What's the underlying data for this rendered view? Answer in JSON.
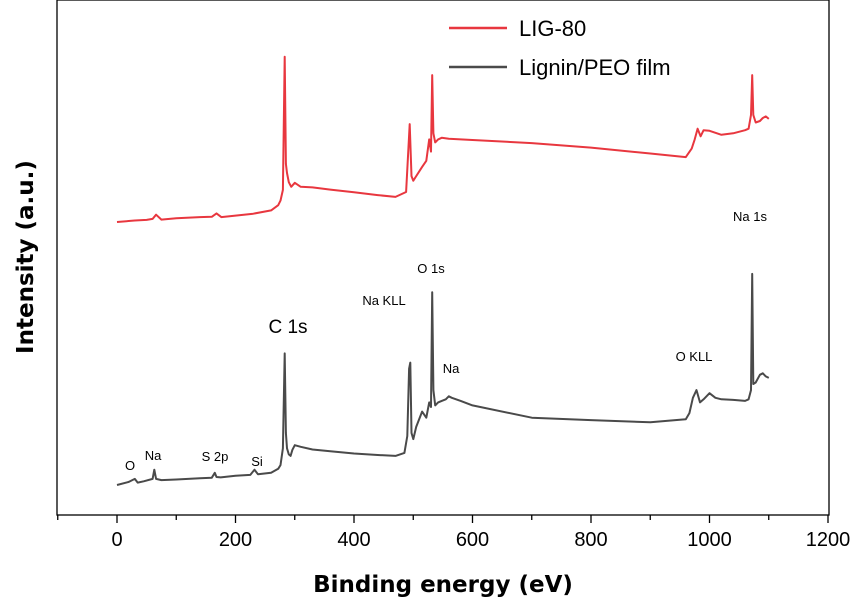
{
  "chart_data": {
    "type": "line",
    "title": "",
    "xlabel": "Binding energy (eV)",
    "ylabel": "Intensity (a.u.)",
    "xlim": [
      -100,
      1200
    ],
    "xticks": [
      0,
      200,
      400,
      600,
      800,
      1000,
      1200
    ],
    "yticks_shown": false,
    "grid": false,
    "legend_position": "top-right",
    "colors": {
      "LIG-80": "#e8373f",
      "Lignin/PEO film": "#4a4a4a",
      "axis": "#000000"
    },
    "series": [
      {
        "name": "LIG-80",
        "x": [
          0,
          30,
          50,
          60,
          66,
          75,
          100,
          140,
          160,
          168,
          176,
          200,
          230,
          260,
          272,
          276,
          280,
          283,
          285,
          287,
          290,
          294,
          300,
          310,
          330,
          360,
          400,
          440,
          470,
          488,
          494,
          497,
          500,
          505,
          515,
          522,
          527,
          530,
          532,
          534,
          537,
          542,
          548,
          560,
          600,
          700,
          800,
          900,
          960,
          970,
          975,
          980,
          985,
          990,
          1000,
          1020,
          1040,
          1060,
          1066,
          1070,
          1072,
          1074,
          1078,
          1085,
          1090,
          1095,
          1100
        ],
        "y": [
          1.0,
          1.5,
          1.7,
          2.0,
          3.4,
          1.8,
          2.2,
          2.6,
          2.7,
          3.8,
          2.6,
          3.1,
          3.7,
          4.8,
          6.5,
          8.0,
          11.5,
          55.0,
          20.0,
          17.0,
          14.0,
          12.5,
          13.8,
          12.5,
          12.3,
          11.6,
          10.7,
          9.8,
          9.2,
          10.8,
          33.0,
          16.0,
          14.5,
          16.0,
          19.0,
          21.0,
          28.0,
          24.0,
          49.0,
          30.0,
          27.0,
          28.0,
          28.5,
          28.2,
          27.8,
          26.8,
          25.3,
          23.4,
          22.2,
          25.0,
          28.0,
          31.5,
          29.0,
          31.0,
          30.8,
          29.5,
          30.0,
          31.0,
          31.5,
          36.0,
          49.0,
          36.0,
          33.5,
          34.0,
          35.0,
          35.5,
          34.7
        ]
      },
      {
        "name": "Lignin/PEO film",
        "x": [
          0,
          20,
          30,
          35,
          45,
          60,
          63,
          66,
          75,
          100,
          140,
          160,
          165,
          168,
          175,
          200,
          225,
          232,
          238,
          260,
          272,
          276,
          280,
          283,
          285,
          287,
          290,
          293,
          296,
          300,
          310,
          330,
          360,
          400,
          440,
          470,
          485,
          490,
          493,
          495,
          497,
          500,
          505,
          515,
          522,
          527,
          530,
          532,
          534,
          537,
          542,
          548,
          555,
          560,
          565,
          580,
          600,
          700,
          800,
          900,
          960,
          966,
          972,
          978,
          984,
          990,
          995,
          1000,
          1010,
          1020,
          1040,
          1060,
          1066,
          1070,
          1072,
          1074,
          1078,
          1085,
          1090,
          1095,
          1100
        ],
        "y": [
          1.0,
          2.0,
          3.0,
          1.8,
          2.2,
          3.0,
          6.0,
          3.0,
          2.6,
          2.8,
          3.2,
          3.4,
          5.0,
          3.6,
          3.5,
          4.0,
          4.3,
          6.0,
          4.5,
          5.0,
          6.3,
          7.5,
          13.0,
          44.0,
          18.0,
          13.0,
          11.0,
          10.5,
          12.5,
          14.0,
          13.5,
          12.6,
          12.0,
          11.3,
          10.8,
          10.5,
          11.5,
          17.0,
          39.0,
          41.0,
          18.0,
          16.0,
          20.0,
          25.0,
          23.0,
          28.0,
          26.5,
          64.0,
          32.0,
          27.0,
          28.0,
          28.5,
          29.0,
          30.0,
          29.5,
          28.5,
          27.0,
          23.0,
          22.2,
          21.5,
          22.5,
          24.5,
          29.5,
          32.0,
          28.0,
          29.0,
          30.0,
          31.0,
          29.5,
          29.0,
          28.8,
          28.5,
          29.0,
          32.0,
          70.0,
          34.0,
          34.5,
          37.0,
          37.5,
          36.5,
          36.0
        ]
      }
    ],
    "annotations": [
      {
        "text": "O",
        "x": 25,
        "series": "Lignin/PEO film"
      },
      {
        "text": "Na",
        "x": 60,
        "series": "Lignin/PEO film"
      },
      {
        "text": "S 2p",
        "x": 164,
        "series": "Lignin/PEO film"
      },
      {
        "text": "Si",
        "x": 234,
        "series": "Lignin/PEO film"
      },
      {
        "text": "C 1s",
        "x": 285,
        "series": "Lignin/PEO film"
      },
      {
        "text": "Na KLL",
        "x": 493,
        "series": "Lignin/PEO film"
      },
      {
        "text": "O 1s",
        "x": 532,
        "series": "Lignin/PEO film"
      },
      {
        "text": "Na",
        "x": 560,
        "series": "Lignin/PEO film"
      },
      {
        "text": "O KLL",
        "x": 975,
        "series": "Lignin/PEO film"
      },
      {
        "text": "Na 1s",
        "x": 1070,
        "series": "Lignin/PEO film"
      }
    ]
  }
}
